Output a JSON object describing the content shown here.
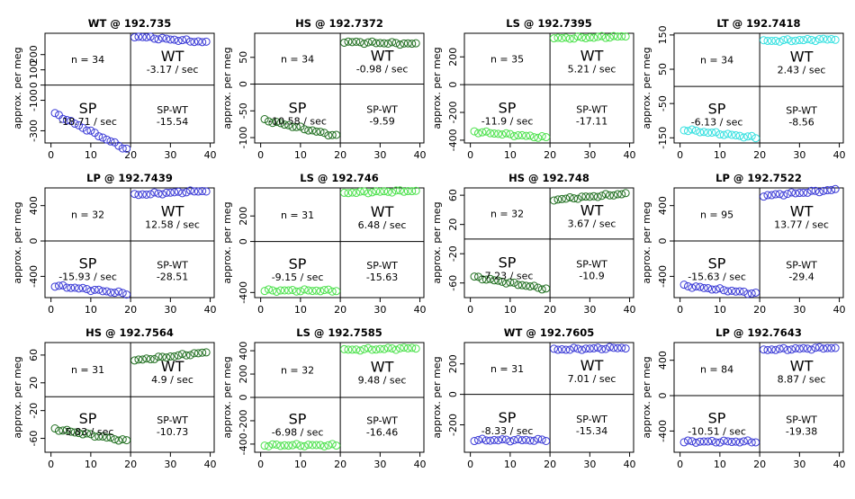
{
  "y_axis_label": "approx. per meg",
  "colors": {
    "blue": "#3a3ad6",
    "green": "#4be14b",
    "darkgreen": "#1f6e1f",
    "cyan": "#33e0e0"
  },
  "chart_data": [
    {
      "type": "scatter",
      "title": "WT @ 192.735",
      "color": "blue",
      "ylim": [
        -380,
        340
      ],
      "yticks": [
        -300,
        -100,
        0,
        100,
        200
      ],
      "xticks": [
        0,
        10,
        20,
        30,
        40
      ],
      "n": "n = 34",
      "wt_rate": "-3.17 / sec",
      "sp_rate": "-18.71 / sec",
      "sp_wt": "-15.54",
      "sp_level": -305,
      "wt_level": 300,
      "sp_slope": -1.8,
      "wt_slope": -0.3
    },
    {
      "type": "scatter",
      "title": "HS @ 192.7372",
      "color": "darkgreen",
      "ylim": [
        -110,
        95
      ],
      "yticks": [
        -100,
        -50,
        0,
        50
      ],
      "xticks": [
        0,
        10,
        20,
        30,
        40
      ],
      "n": "n = 34",
      "wt_rate": "-0.98 / sec",
      "sp_rate": "-10.58 / sec",
      "sp_wt": "-9.59",
      "sp_level": -82,
      "wt_level": 77,
      "sp_slope": -0.8,
      "wt_slope": -0.1
    },
    {
      "type": "scatter",
      "title": "LS @ 192.7395",
      "color": "green",
      "ylim": [
        -420,
        370
      ],
      "yticks": [
        -400,
        -200,
        0,
        200
      ],
      "xticks": [
        0,
        10,
        20,
        30,
        40
      ],
      "n": "n = 35",
      "wt_rate": "5.21 / sec",
      "sp_rate": "-11.9 / sec",
      "sp_wt": "-17.11",
      "sp_level": -360,
      "wt_level": 340,
      "sp_slope": -0.3,
      "wt_slope": 0.1
    },
    {
      "type": "scatter",
      "title": "LT @ 192.7418",
      "color": "cyan",
      "ylim": [
        -165,
        155
      ],
      "yticks": [
        -150,
        -50,
        50,
        150
      ],
      "xticks": [
        0,
        10,
        20,
        30,
        40
      ],
      "n": "n = 34",
      "wt_rate": "2.43 / sec",
      "sp_rate": "-6.13 / sec",
      "sp_wt": "-8.56",
      "sp_level": -138,
      "wt_level": 135,
      "sp_slope": -0.4,
      "wt_slope": 0.1
    },
    {
      "type": "scatter",
      "title": "LP @ 192.7439",
      "color": "blue",
      "ylim": [
        -640,
        600
      ],
      "yticks": [
        -400,
        0,
        400
      ],
      "xticks": [
        0,
        10,
        20,
        30,
        40
      ],
      "n": "n = 32",
      "wt_rate": "12.58 / sec",
      "sp_rate": "-15.93 / sec",
      "sp_wt": "-28.51",
      "sp_level": -550,
      "wt_level": 545,
      "sp_slope": -0.4,
      "wt_slope": 0.2
    },
    {
      "type": "scatter",
      "title": "LS @ 192.746",
      "color": "green",
      "ylim": [
        -440,
        420
      ],
      "yticks": [
        -400,
        0,
        200
      ],
      "xticks": [
        0,
        10,
        20,
        30,
        40
      ],
      "n": "n = 31",
      "wt_rate": "6.48 / sec",
      "sp_rate": "-9.15 / sec",
      "sp_wt": "-15.63",
      "sp_level": -385,
      "wt_level": 390,
      "sp_slope": 0,
      "wt_slope": 0.1
    },
    {
      "type": "scatter",
      "title": "HS @ 192.748",
      "color": "darkgreen",
      "ylim": [
        -80,
        70
      ],
      "yticks": [
        -60,
        -20,
        20,
        60
      ],
      "xticks": [
        0,
        10,
        20,
        30,
        40
      ],
      "n": "n = 32",
      "wt_rate": "3.67 / sec",
      "sp_rate": "-7.23 / sec",
      "sp_wt": "-10.9",
      "sp_level": -60,
      "wt_level": 58,
      "sp_slope": -0.6,
      "wt_slope": 0.3
    },
    {
      "type": "scatter",
      "title": "LP @ 192.7522",
      "color": "blue",
      "ylim": [
        -640,
        600
      ],
      "yticks": [
        -400,
        0,
        400
      ],
      "xticks": [
        0,
        10,
        20,
        30,
        40
      ],
      "n": "n = 95",
      "wt_rate": "13.77 / sec",
      "sp_rate": "-15.63 / sec",
      "sp_wt": "-29.4",
      "sp_level": -550,
      "wt_level": 545,
      "sp_slope": -0.4,
      "wt_slope": 0.3
    },
    {
      "type": "scatter",
      "title": "HS @ 192.7564",
      "color": "darkgreen",
      "ylim": [
        -80,
        78
      ],
      "yticks": [
        -60,
        -20,
        20,
        60
      ],
      "xticks": [
        0,
        10,
        20,
        30,
        40
      ],
      "n": "n = 31",
      "wt_rate": "4.9 / sec",
      "sp_rate": "-5.83 / sec",
      "sp_wt": "-10.73",
      "sp_level": -55,
      "wt_level": 58,
      "sp_slope": -0.6,
      "wt_slope": 0.4
    },
    {
      "type": "scatter",
      "title": "LS @ 192.7585",
      "color": "green",
      "ylim": [
        -470,
        470
      ],
      "yticks": [
        -400,
        -200,
        0,
        200,
        400
      ],
      "xticks": [
        0,
        10,
        20,
        30,
        40
      ],
      "n": "n = 32",
      "wt_rate": "9.48 / sec",
      "sp_rate": "-6.98 / sec",
      "sp_wt": "-16.46",
      "sp_level": -410,
      "wt_level": 415,
      "sp_slope": 0,
      "wt_slope": 0.1
    },
    {
      "type": "scatter",
      "title": "WT @ 192.7605",
      "color": "blue",
      "ylim": [
        -380,
        340
      ],
      "yticks": [
        -200,
        0,
        200
      ],
      "xticks": [
        0,
        10,
        20,
        30,
        40
      ],
      "n": "n = 31",
      "wt_rate": "7.01 / sec",
      "sp_rate": "-8.33 / sec",
      "sp_wt": "-15.34",
      "sp_level": -300,
      "wt_level": 300,
      "sp_slope": 0,
      "wt_slope": 0.1
    },
    {
      "type": "scatter",
      "title": "LP @ 192.7643",
      "color": "blue",
      "ylim": [
        -640,
        600
      ],
      "yticks": [
        -400,
        0,
        400
      ],
      "xticks": [
        0,
        10,
        20,
        30,
        40
      ],
      "n": "n = 84",
      "wt_rate": "8.87 / sec",
      "sp_rate": "-10.51 / sec",
      "sp_wt": "-19.38",
      "sp_level": -520,
      "wt_level": 530,
      "sp_slope": 0,
      "wt_slope": 0.1
    }
  ],
  "quadrant_labels": {
    "wt": "WT",
    "sp": "SP",
    "spwt": "SP-WT"
  }
}
